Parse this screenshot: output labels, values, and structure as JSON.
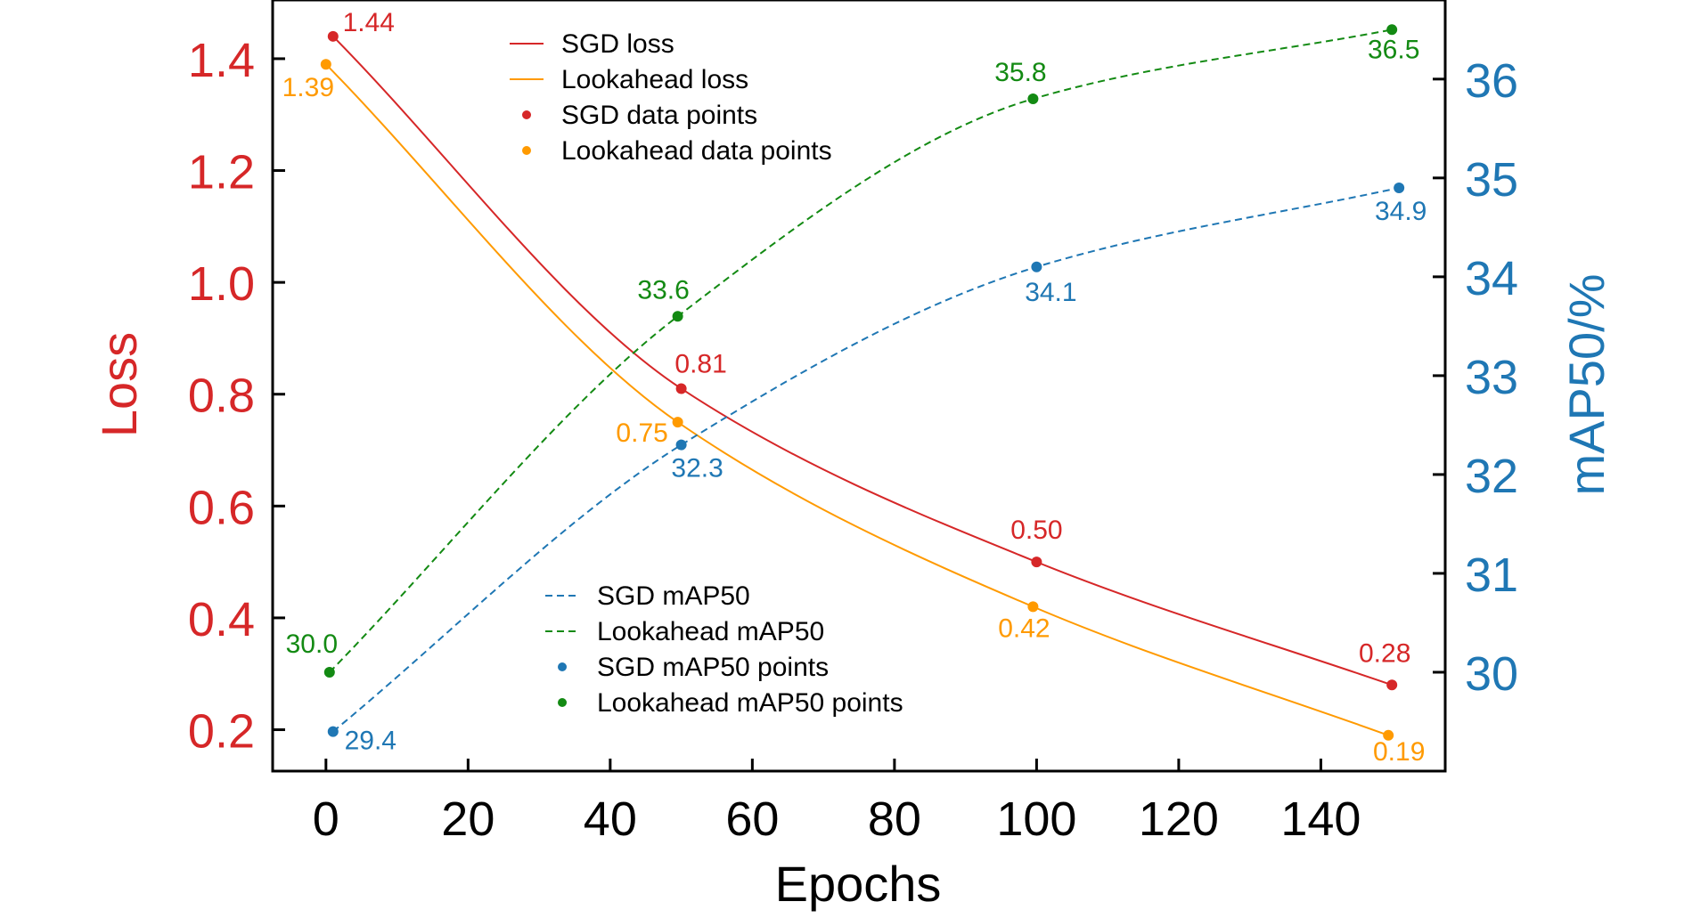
{
  "chart_data": {
    "type": "line",
    "xlabel": "Epochs",
    "ylabel_left": "Loss",
    "ylabel_right": "mAP50/%",
    "xlim": [
      -7.5,
      157.5
    ],
    "ylim_left": [
      0.126,
      1.505
    ],
    "ylim_right": [
      29.0,
      36.8
    ],
    "x_ticks": [
      0,
      20,
      40,
      60,
      80,
      100,
      120,
      140
    ],
    "y_ticks_left": [
      0.2,
      0.4,
      0.6,
      0.8,
      1.0,
      1.2,
      1.4
    ],
    "y_ticks_right": [
      30,
      31,
      32,
      33,
      34,
      35,
      36
    ],
    "grid": false,
    "colors": {
      "sgd_loss": "#d62728",
      "lookahead_loss": "#ff9a00",
      "sgd_map": "#1f77b4",
      "lookahead_map": "#138a13",
      "left_axis": "#d62728",
      "right_axis": "#1f77b4"
    },
    "series": [
      {
        "key": "sgd_loss",
        "axis": "left",
        "style": "solid",
        "line_name": "SGD loss",
        "points_name": "SGD data points",
        "x": [
          1,
          50,
          100,
          150
        ],
        "y": [
          1.44,
          0.81,
          0.5,
          0.28
        ],
        "labels": [
          "1.44",
          "0.81",
          "0.50",
          "0.28"
        ]
      },
      {
        "key": "lookahead_loss",
        "axis": "left",
        "style": "solid",
        "line_name": "Lookahead loss",
        "points_name": "Lookahead data points",
        "x": [
          0,
          49.5,
          99.5,
          149.5
        ],
        "y": [
          1.39,
          0.75,
          0.42,
          0.19
        ],
        "labels": [
          "1.39",
          "0.75",
          "0.42",
          "0.19"
        ]
      },
      {
        "key": "sgd_map",
        "axis": "right",
        "style": "dashed",
        "line_name": "SGD mAP50",
        "points_name": "SGD mAP50 points",
        "x": [
          1,
          50,
          100,
          151
        ],
        "y": [
          29.4,
          32.3,
          34.1,
          34.9
        ],
        "labels": [
          "29.4",
          "32.3",
          "34.1",
          "34.9"
        ]
      },
      {
        "key": "lookahead_map",
        "axis": "right",
        "style": "dashed",
        "line_name": "Lookahead mAP50",
        "points_name": "Lookahead mAP50 points",
        "x": [
          0.5,
          49.5,
          99.5,
          150
        ],
        "y": [
          30.0,
          33.6,
          35.8,
          36.5
        ],
        "labels": [
          "30.0",
          "33.6",
          "35.8",
          "36.5"
        ]
      }
    ],
    "legends": [
      {
        "placement": "top-center",
        "entries": [
          "SGD loss",
          "Lookahead loss",
          "SGD data points",
          "Lookahead data points"
        ]
      },
      {
        "placement": "bottom-center",
        "entries": [
          "SGD mAP50",
          "Lookahead mAP50",
          "SGD mAP50 points",
          "Lookahead mAP50 points"
        ]
      }
    ]
  }
}
